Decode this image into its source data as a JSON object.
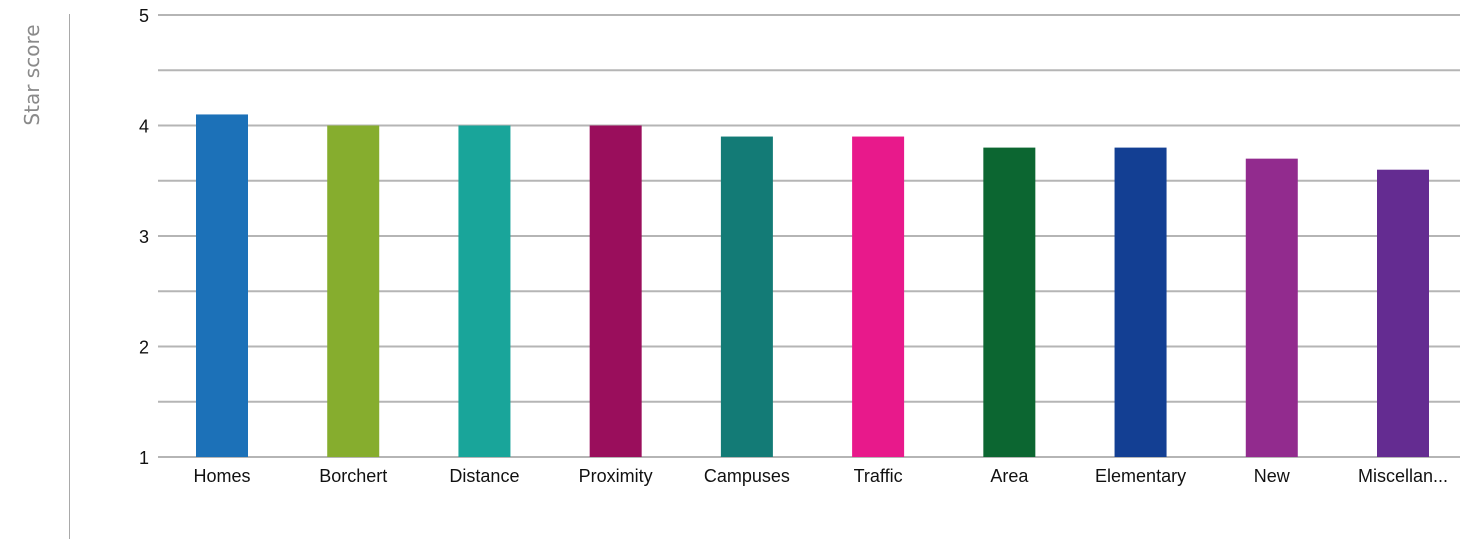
{
  "chart_data": {
    "type": "bar",
    "title": "",
    "xlabel": "",
    "ylabel": "Star score",
    "ylim": [
      1,
      5
    ],
    "yticks": [
      1,
      2,
      3,
      4,
      5
    ],
    "grid": true,
    "legend": "none",
    "categories": [
      "Homes",
      "Borchert",
      "Distance",
      "Proximity",
      "Campuses",
      "Traffic",
      "Area",
      "Elementary",
      "New",
      "Miscellan..."
    ],
    "values": [
      4.1,
      4.0,
      4.0,
      4.0,
      3.9,
      3.9,
      3.8,
      3.8,
      3.7,
      3.6
    ],
    "colors": [
      "#1c71b8",
      "#86ad2e",
      "#19a59a",
      "#9a0e5c",
      "#137b76",
      "#e8198b",
      "#0c6631",
      "#133f93",
      "#922b8e",
      "#642c91"
    ]
  }
}
